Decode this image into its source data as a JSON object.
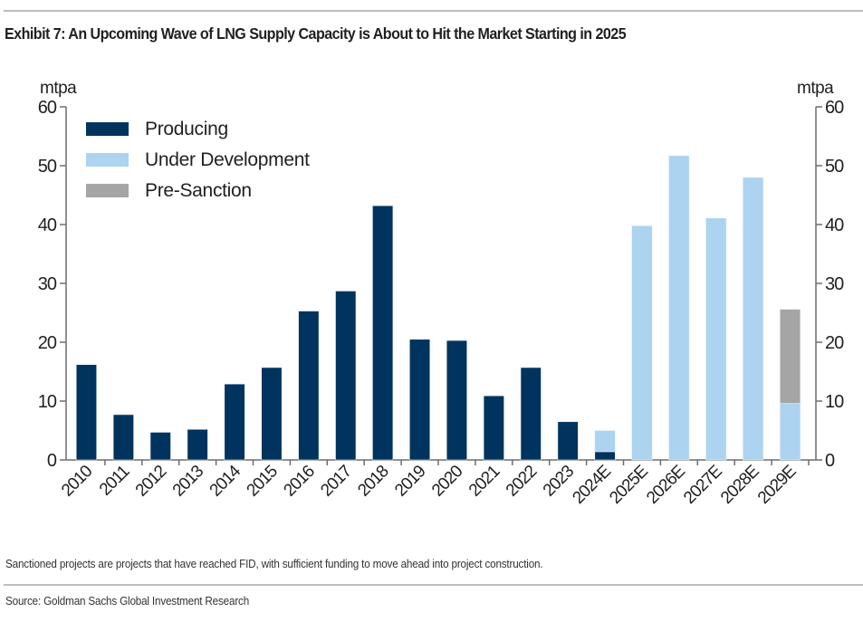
{
  "header": {
    "title": "Exhibit 7: An Upcoming Wave of LNG Supply Capacity is About to Hit the Market Starting in 2025"
  },
  "footer": {
    "note": "Sanctioned projects are projects that have reached FID, with sufficient funding to move ahead into project construction.",
    "source": "Source: Goldman Sachs Global Investment Research"
  },
  "chart_data": {
    "type": "bar",
    "stacked": true,
    "title": "Exhibit 7: An Upcoming Wave of LNG Supply Capacity is About to Hit the Market Starting in 2025",
    "xlabel": "",
    "ylabel": "mtpa",
    "ylabel_right": "mtpa",
    "ylim": [
      0,
      60
    ],
    "yticks": [
      0,
      10,
      20,
      30,
      40,
      50,
      60
    ],
    "grid": false,
    "legend_position": "top-left",
    "categories": [
      "2010",
      "2011",
      "2012",
      "2013",
      "2014",
      "2015",
      "2016",
      "2017",
      "2018",
      "2019",
      "2020",
      "2021",
      "2022",
      "2023",
      "2024E",
      "2025E",
      "2026E",
      "2027E",
      "2028E",
      "2029E"
    ],
    "series": [
      {
        "name": "Producing",
        "color": "#00335e",
        "values": [
          16.2,
          7.7,
          4.7,
          5.2,
          12.9,
          15.7,
          25.3,
          28.7,
          43.2,
          20.5,
          20.3,
          10.9,
          15.7,
          6.5,
          1.4,
          0,
          0,
          0,
          0,
          0
        ]
      },
      {
        "name": "Under Development",
        "color": "#acd3f0",
        "values": [
          0,
          0,
          0,
          0,
          0,
          0,
          0,
          0,
          0,
          0,
          0,
          0,
          0,
          0,
          3.6,
          39.8,
          51.7,
          41.1,
          48.0,
          9.6
        ]
      },
      {
        "name": "Pre-Sanction",
        "color": "#a5a5a5",
        "values": [
          0,
          0,
          0,
          0,
          0,
          0,
          0,
          0,
          0,
          0,
          0,
          0,
          0,
          0,
          0,
          0,
          0,
          0,
          0,
          16.0
        ]
      }
    ]
  }
}
